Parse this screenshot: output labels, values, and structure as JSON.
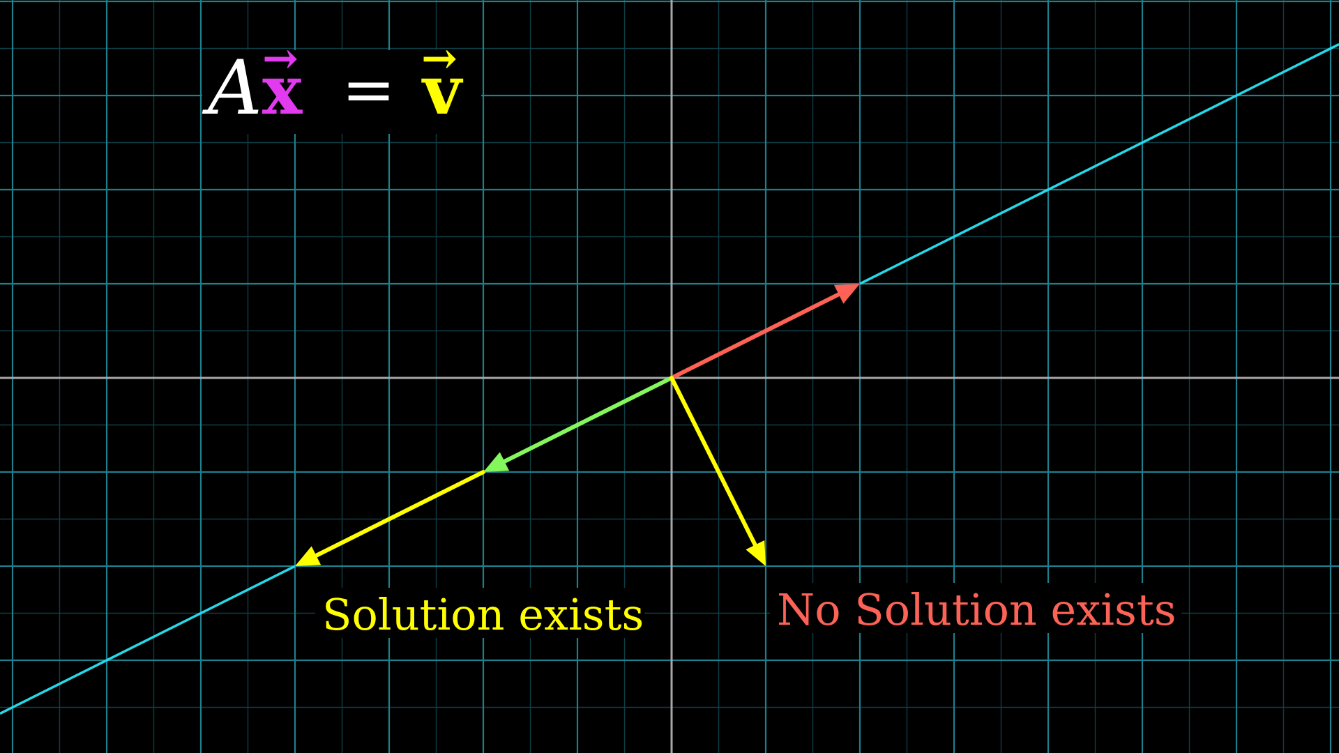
{
  "equation": {
    "matrix": "A",
    "vector_x": "x",
    "equals": "=",
    "vector_v": "v",
    "arrow": "→"
  },
  "labels": {
    "solution": "Solution exists",
    "no_solution": "No Solution exists"
  },
  "plane": {
    "x_range": [
      -7.2,
      7.2
    ],
    "y_range": [
      -4.0,
      4.0
    ],
    "span_line_slope": 0.5
  },
  "vectors": {
    "basis_red": [
      2,
      1
    ],
    "basis_green": [
      -2,
      -1
    ],
    "v_on_span": [
      -4,
      -2
    ],
    "v_off_span": [
      1,
      -2
    ]
  },
  "colors": {
    "background": "#000000",
    "grid_major": "#1f7f8c",
    "grid_minor": "#0f3e46",
    "axis": "#a8a8a8",
    "span_line": "#29d6e6",
    "red": "#fc6255",
    "green": "#83f75c",
    "yellow": "#ffff00",
    "magenta": "#e23aef",
    "white": "#ffffff"
  }
}
